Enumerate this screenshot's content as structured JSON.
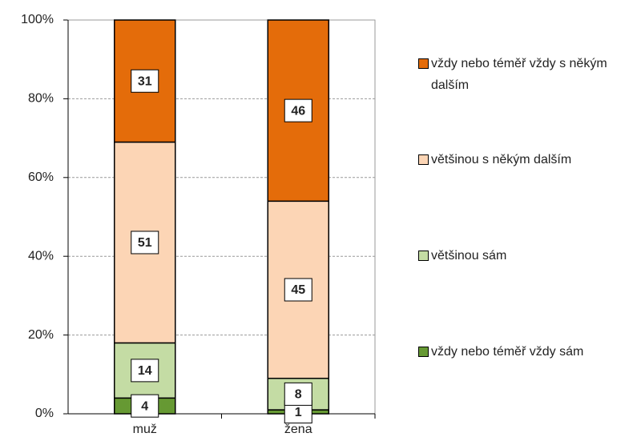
{
  "chart_data": {
    "type": "stacked_bar_100",
    "categories": [
      "muž",
      "žena"
    ],
    "series": [
      {
        "name": "vždy nebo téměř vždy sám",
        "color": "#669933",
        "values": [
          4,
          1
        ]
      },
      {
        "name": "většinou sám",
        "color": "#c4dca4",
        "values": [
          14,
          8
        ]
      },
      {
        "name": "většinou s někým dalším",
        "color": "#fcd5b5",
        "values": [
          51,
          45
        ]
      },
      {
        "name": "vždy nebo téměř vždy s někým dalším",
        "color": "#e46c0a",
        "values": [
          31,
          46
        ]
      }
    ],
    "ylim": [
      0,
      100
    ],
    "yticks": [
      {
        "value": 0,
        "label": "0%"
      },
      {
        "value": 20,
        "label": "20%"
      },
      {
        "value": 40,
        "label": "40%"
      },
      {
        "value": 60,
        "label": "60%"
      },
      {
        "value": 80,
        "label": "80%"
      },
      {
        "value": 100,
        "label": "100%"
      }
    ],
    "grid": true
  }
}
